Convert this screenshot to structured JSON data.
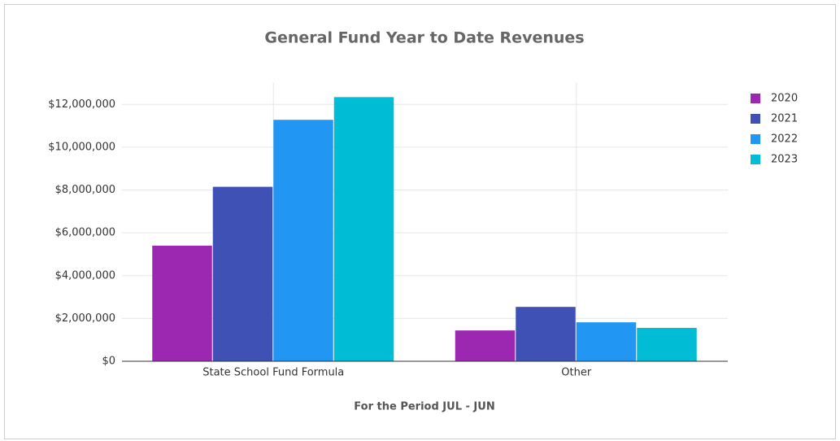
{
  "chart_data": {
    "type": "bar",
    "title": "General Fund Year to Date Revenues",
    "x_label": "For the Period JUL - JUN",
    "categories": [
      "State School Fund Formula",
      "Other"
    ],
    "series": [
      {
        "name": "2020",
        "color": "#9c27b0",
        "values": [
          5400000,
          1440000
        ]
      },
      {
        "name": "2021",
        "color": "#3f51b5",
        "values": [
          8150000,
          2540000
        ]
      },
      {
        "name": "2022",
        "color": "#2196f3",
        "values": [
          11280000,
          1820000
        ]
      },
      {
        "name": "2023",
        "color": "#00bcd4",
        "values": [
          12340000,
          1560000
        ]
      }
    ],
    "ylim": [
      0,
      13000000
    ],
    "yticks": [
      {
        "value": 0,
        "label": "$0"
      },
      {
        "value": 2000000,
        "label": "$2,000,000"
      },
      {
        "value": 4000000,
        "label": "$4,000,000"
      },
      {
        "value": 6000000,
        "label": "$6,000,000"
      },
      {
        "value": 8000000,
        "label": "$8,000,000"
      },
      {
        "value": 10000000,
        "label": "$10,000,000"
      },
      {
        "value": 12000000,
        "label": "$12,000,000"
      }
    ],
    "grid": true,
    "legend": "right"
  }
}
